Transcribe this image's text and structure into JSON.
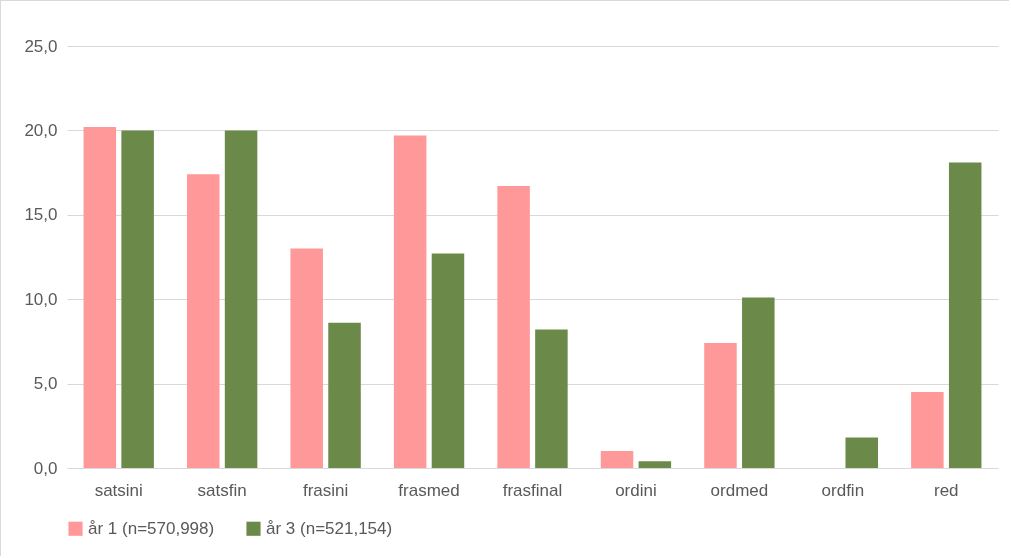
{
  "chart_data": {
    "type": "bar",
    "categories": [
      "satsini",
      "satsfin",
      "frasini",
      "frasmed",
      "frasfinal",
      "ordini",
      "ordmed",
      "ordfin",
      "red"
    ],
    "series": [
      {
        "name": "år 1 (n=570,998)",
        "color": "#ff9999",
        "values": [
          20.2,
          17.4,
          13.0,
          19.7,
          16.7,
          1.0,
          7.4,
          0,
          4.5
        ]
      },
      {
        "name": "år 3 (n=521,154)",
        "color": "#6b8a4a",
        "values": [
          20.0,
          20.0,
          8.6,
          12.7,
          8.2,
          0.4,
          10.1,
          1.8,
          18.1
        ]
      }
    ],
    "ylim": [
      0,
      25
    ],
    "yticks": [
      {
        "value": 0,
        "label": "0,0"
      },
      {
        "value": 5,
        "label": "5,0"
      },
      {
        "value": 10,
        "label": "10,0"
      },
      {
        "value": 15,
        "label": "15,0"
      },
      {
        "value": 20,
        "label": "20,0"
      },
      {
        "value": 25,
        "label": "25,0"
      }
    ],
    "grid": "y",
    "legend": "bottom"
  }
}
